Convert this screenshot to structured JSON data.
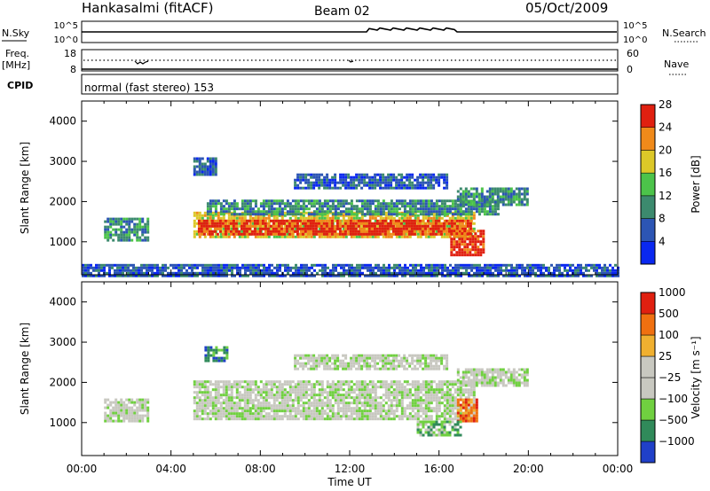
{
  "header": {
    "title": "Hankasalmi (fitACF)",
    "beam": "Beam 02",
    "date": "05/Oct/2009"
  },
  "top_panels": {
    "nsky_label": "N.Sky",
    "nsky_ticks": [
      "10^5",
      "10^0"
    ],
    "nsearch_label": "N.Search",
    "nsearch_ticks": [
      "10^5",
      "10^0"
    ],
    "freq_label": "Freq.",
    "freq_unit": "[MHz]",
    "freq_ticks": [
      "18",
      "8"
    ],
    "nave_label": "Nave",
    "nave_ticks": [
      "60",
      "0"
    ],
    "cpid_label": "CPID",
    "cpid_text": "normal (fast stereo) 153"
  },
  "chart_data": [
    {
      "type": "heatmap",
      "name": "power",
      "ylabel": "Slant Range [km]",
      "yticks": [
        "1000",
        "2000",
        "3000",
        "4000"
      ],
      "ylim": [
        180,
        4500
      ],
      "xlim": [
        0,
        24
      ],
      "colorbar_label": "Power [dB]",
      "colorbar_ticks": [
        "4",
        "8",
        "12",
        "16",
        "20",
        "24",
        "28"
      ],
      "colors": [
        "#0a28f0",
        "#2c55b4",
        "#3c8a6e",
        "#4cc34a",
        "#dcc828",
        "#f08a1a",
        "#e02010"
      ],
      "regions": [
        {
          "t0": 5.0,
          "t1": 17.6,
          "r0": 1100,
          "r1": 1750,
          "level": 4
        },
        {
          "t0": 5.2,
          "t1": 17.4,
          "r0": 1200,
          "r1": 1550,
          "level": 6
        },
        {
          "t0": 5.6,
          "t1": 18.6,
          "r0": 1700,
          "r1": 2050,
          "level": 2
        },
        {
          "t0": 16.8,
          "t1": 20.0,
          "r0": 1950,
          "r1": 2350,
          "level": 2
        },
        {
          "t0": 9.5,
          "t1": 16.3,
          "r0": 2350,
          "r1": 2700,
          "level": 1
        },
        {
          "t0": 1.0,
          "t1": 3.0,
          "r0": 1050,
          "r1": 1600,
          "level": 2
        },
        {
          "t0": 16.5,
          "t1": 18.0,
          "r0": 700,
          "r1": 1300,
          "level": 6
        },
        {
          "t0": 0.0,
          "t1": 24.0,
          "r0": 180,
          "r1": 450,
          "level": 1
        },
        {
          "t0": 5.0,
          "t1": 6.0,
          "r0": 2700,
          "r1": 3100,
          "level": 1
        }
      ]
    },
    {
      "type": "heatmap",
      "name": "velocity",
      "ylabel": "Slant Range [km]",
      "yticks": [
        "1000",
        "2000",
        "3000",
        "4000"
      ],
      "ylim": [
        180,
        4500
      ],
      "xlim": [
        0,
        24
      ],
      "xticks": [
        "00:00",
        "04:00",
        "08:00",
        "12:00",
        "16:00",
        "20:00",
        "00:00"
      ],
      "xlabel": "Time UT",
      "colorbar_label": "Velocity [m s⁻¹]",
      "colorbar_ticks": [
        "1000",
        "500",
        "100",
        "25",
        "−25",
        "−100",
        "−500",
        "−1000"
      ],
      "colors": [
        "#2040c8",
        "#308a5a",
        "#70d040",
        "#c8c8c0",
        "#c8c8c0",
        "#f0b030",
        "#f07010",
        "#e02010"
      ],
      "regions": [
        {
          "t0": 5.0,
          "t1": 17.6,
          "r0": 1100,
          "r1": 2050,
          "level": 3
        },
        {
          "t0": 16.8,
          "t1": 20.0,
          "r0": 1950,
          "r1": 2350,
          "level": 3
        },
        {
          "t0": 9.5,
          "t1": 16.3,
          "r0": 2350,
          "r1": 2700,
          "level": 3
        },
        {
          "t0": 1.0,
          "t1": 3.0,
          "r0": 1050,
          "r1": 1600,
          "level": 3
        },
        {
          "t0": 16.8,
          "t1": 17.7,
          "r0": 1050,
          "r1": 1600,
          "level": 6
        },
        {
          "t0": 15.0,
          "t1": 17.0,
          "r0": 700,
          "r1": 1050,
          "level": 2
        },
        {
          "t0": 5.5,
          "t1": 6.5,
          "r0": 2550,
          "r1": 2900,
          "level": 1
        }
      ]
    }
  ]
}
